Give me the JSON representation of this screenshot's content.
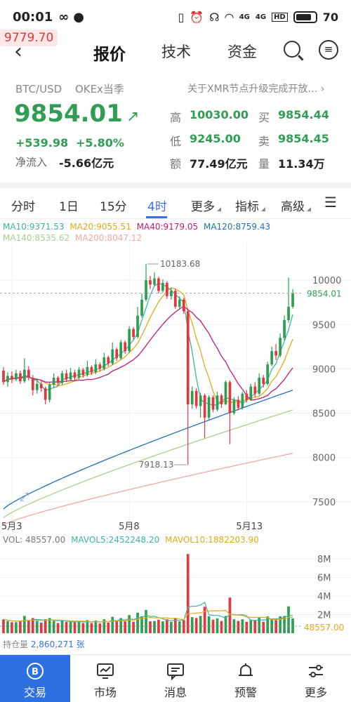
{
  "status_bar": {
    "time": "00:01",
    "battery": "70",
    "signal_badges": [
      "4G",
      "4G",
      "HD"
    ]
  },
  "price_tag": "9779.70",
  "nav": {
    "tabs": [
      "报价",
      "技术",
      "资金"
    ],
    "active_tab": "报价"
  },
  "ticker": {
    "pair": "BTC/USD",
    "exchange": "OKEx当季",
    "notice": "关于XMR节点升级完成开放…",
    "price": "9854.01",
    "change": "+539.98",
    "change_pct": "+5.80%",
    "net_inflow_label": "净流入",
    "net_inflow": "-5.66亿元",
    "high_label": "高",
    "high": "10030.00",
    "low_label": "低",
    "low": "9245.00",
    "amount_label": "额",
    "amount": "77.49亿元",
    "buy_label": "买",
    "buy": "9854.44",
    "sell_label": "卖",
    "sell": "9854.45",
    "volume_label": "量",
    "volume": "11.34万"
  },
  "intervals": {
    "items": [
      "分时",
      "1日",
      "15分",
      "4时",
      "更多",
      "指标",
      "高级"
    ],
    "active": "4时"
  },
  "ma_legend": {
    "ma10": "MA10:9371.53",
    "ma20": "MA20:9055.51",
    "ma40": "MA40:9179.05",
    "ma120": "MA120:8759.43",
    "ma140": "MA140:8535.62",
    "ma200": "MA200:8047.12"
  },
  "vol_legend": {
    "vol": "VOL: 48557.00",
    "mavol5": "MAVOL5:2452248.20",
    "mavol10": "MAVOL10:1882203.90"
  },
  "hold": {
    "label": "持仓量",
    "value": "2,860,271",
    "unit": "张"
  },
  "colors": {
    "up": "#2f9e52",
    "down": "#e0383e",
    "accent": "#3b6fe0",
    "ma10": "#3bb6a0",
    "ma20": "#e6a817",
    "ma40": "#c2187a",
    "ma120": "#1f6fb4",
    "ma140": "#a8d08d",
    "ma200": "#f2a7a7"
  },
  "chart_data": {
    "type": "candlestick",
    "price_axis_ticks": [
      "10000",
      "9500",
      "9000",
      "8500",
      "8000",
      "7500"
    ],
    "x_ticks": [
      "5月3",
      "5月8",
      "5月13"
    ],
    "annotations": {
      "high": "10183.68",
      "low": "7918.13",
      "last": "9854.01"
    },
    "ylim": [
      7300,
      10350
    ],
    "candles": [
      [
        8980,
        8850,
        9020,
        8820
      ],
      [
        8850,
        8920,
        8960,
        8800
      ],
      [
        8920,
        8880,
        8970,
        8840
      ],
      [
        8880,
        8950,
        8990,
        8860
      ],
      [
        8950,
        8860,
        8980,
        8830
      ],
      [
        8860,
        8990,
        9120,
        8840
      ],
      [
        8990,
        8900,
        9030,
        8870
      ],
      [
        8900,
        8760,
        8930,
        8700
      ],
      [
        8760,
        8830,
        8880,
        8720
      ],
      [
        8830,
        8780,
        8860,
        8740
      ],
      [
        8780,
        8650,
        8800,
        8600
      ],
      [
        8650,
        8820,
        8850,
        8620
      ],
      [
        8820,
        8900,
        8950,
        8790
      ],
      [
        8900,
        8840,
        8920,
        8810
      ],
      [
        8840,
        8950,
        8980,
        8820
      ],
      [
        8950,
        8880,
        8990,
        8850
      ],
      [
        8880,
        8960,
        9010,
        8860
      ],
      [
        8960,
        8900,
        8990,
        8860
      ],
      [
        8900,
        8990,
        9020,
        8870
      ],
      [
        8990,
        8930,
        9010,
        8900
      ],
      [
        8930,
        9020,
        9090,
        8910
      ],
      [
        9020,
        8960,
        9040,
        8930
      ],
      [
        8960,
        9050,
        9110,
        8940
      ],
      [
        9050,
        9000,
        9070,
        8970
      ],
      [
        9000,
        9130,
        9180,
        8980
      ],
      [
        9130,
        9060,
        9150,
        9030
      ],
      [
        9060,
        9220,
        9300,
        9040
      ],
      [
        9220,
        9120,
        9240,
        9090
      ],
      [
        9120,
        9300,
        9330,
        9100
      ],
      [
        9300,
        9200,
        9320,
        9170
      ],
      [
        9200,
        9450,
        9480,
        9180
      ],
      [
        9450,
        9360,
        9470,
        9330
      ],
      [
        9360,
        9600,
        9700,
        9340
      ],
      [
        9600,
        9780,
        9850,
        9580
      ],
      [
        9780,
        10000,
        10183.68,
        9760
      ],
      [
        10000,
        9950,
        10050,
        9900
      ],
      [
        9950,
        10020,
        10090,
        9930
      ],
      [
        10020,
        9880,
        10040,
        9850
      ],
      [
        9880,
        9970,
        10010,
        9860
      ],
      [
        9970,
        9820,
        9990,
        9790
      ],
      [
        9820,
        9880,
        9920,
        9780
      ],
      [
        9880,
        9700,
        9900,
        9680
      ],
      [
        9700,
        9780,
        9820,
        9670
      ],
      [
        9780,
        9650,
        9800,
        9620
      ],
      [
        9650,
        8600,
        9680,
        7918.13
      ],
      [
        8600,
        8750,
        8800,
        8550
      ],
      [
        8750,
        8580,
        8780,
        8550
      ],
      [
        8580,
        8700,
        8730,
        8450
      ],
      [
        8700,
        8450,
        8720,
        8220
      ],
      [
        8450,
        8680,
        8700,
        8430
      ],
      [
        8680,
        8540,
        8700,
        8510
      ],
      [
        8540,
        8700,
        8740,
        8520
      ],
      [
        8700,
        8600,
        8720,
        8560
      ],
      [
        8600,
        8850,
        8870,
        8590
      ],
      [
        8850,
        8500,
        8870,
        8150
      ],
      [
        8500,
        8650,
        8680,
        8480
      ],
      [
        8650,
        8560,
        8690,
        8530
      ],
      [
        8560,
        8720,
        8740,
        8540
      ],
      [
        8720,
        8650,
        8760,
        8620
      ],
      [
        8650,
        8800,
        8830,
        8640
      ],
      [
        8800,
        8720,
        8850,
        8680
      ],
      [
        8720,
        8900,
        8950,
        8700
      ],
      [
        8900,
        8830,
        8930,
        8790
      ],
      [
        8830,
        9050,
        9080,
        8810
      ],
      [
        9050,
        9200,
        9250,
        9030
      ],
      [
        9200,
        9150,
        9280,
        9100
      ],
      [
        9150,
        9350,
        9400,
        9130
      ],
      [
        9350,
        9550,
        9600,
        9320
      ],
      [
        9550,
        9700,
        10030,
        9520
      ],
      [
        9700,
        9854.01,
        9900,
        9680
      ]
    ]
  }
}
